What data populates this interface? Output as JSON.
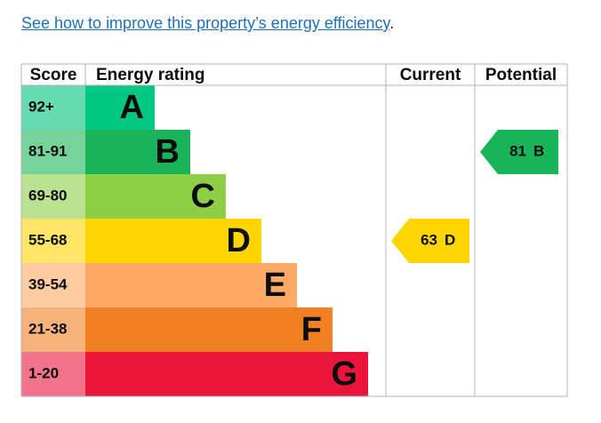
{
  "link": {
    "text": "See how to improve this property’s energy efficiency",
    "suffix": "."
  },
  "table": {
    "headers": [
      "Score",
      "Energy rating",
      "Current",
      "Potential"
    ],
    "bands": [
      {
        "score": "92+",
        "letter": "A",
        "color": "#00c781",
        "tint": "#66dab0"
      },
      {
        "score": "81-91",
        "letter": "B",
        "color": "#19b459",
        "tint": "#75d29b"
      },
      {
        "score": "69-80",
        "letter": "C",
        "color": "#8dce46",
        "tint": "#bbe290"
      },
      {
        "score": "55-68",
        "letter": "D",
        "color": "#ffd500",
        "tint": "#ffe666"
      },
      {
        "score": "39-54",
        "letter": "E",
        "color": "#fcaa65",
        "tint": "#fdcca3"
      },
      {
        "score": "21-38",
        "letter": "F",
        "color": "#ef8023",
        "tint": "#f5b37b"
      },
      {
        "score": "1-20",
        "letter": "G",
        "color": "#e9153b",
        "tint": "#f2738a"
      }
    ],
    "current": {
      "value": 63,
      "letter": "D"
    },
    "potential": {
      "value": 81,
      "letter": "B"
    }
  }
}
